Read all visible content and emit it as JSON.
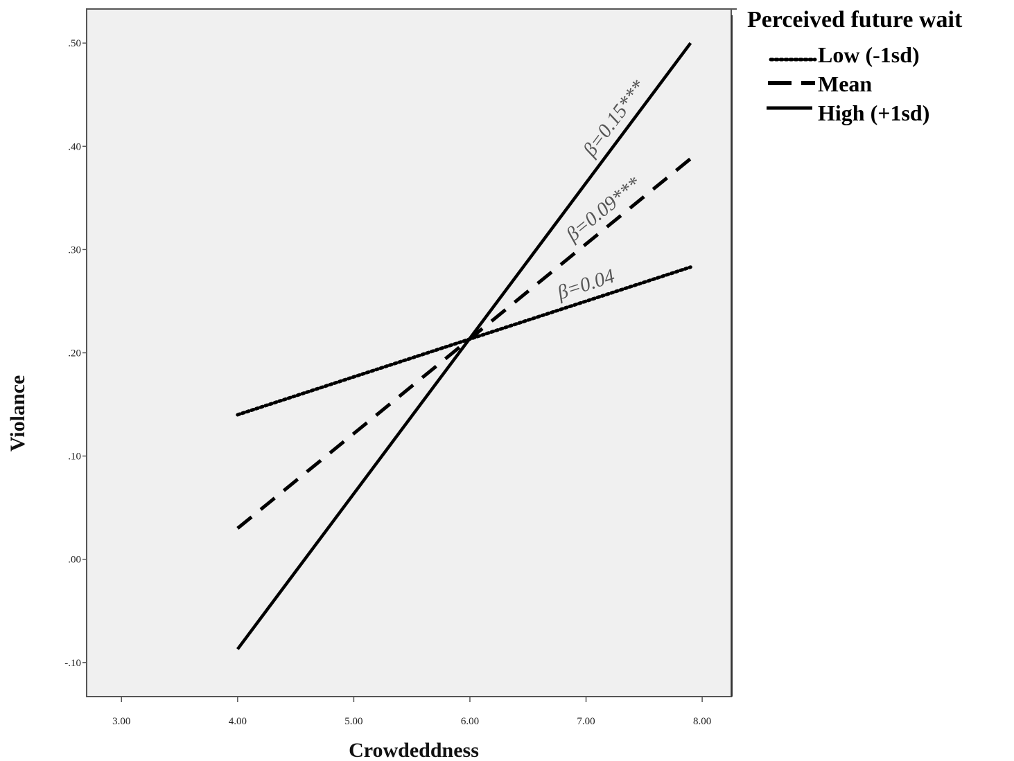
{
  "chart_data": {
    "type": "line",
    "xlabel": "Crowdeddness",
    "ylabel": "Violance",
    "xlim": [
      2.7,
      8.25
    ],
    "ylim": [
      -0.133,
      0.533
    ],
    "x_ticks": [
      3,
      4,
      5,
      6,
      7,
      8
    ],
    "x_tick_labels": [
      "3.00",
      "4.00",
      "5.00",
      "6.00",
      "7.00",
      "8.00"
    ],
    "y_ticks": [
      -0.1,
      0.0,
      0.1,
      0.2,
      0.3,
      0.4,
      0.5
    ],
    "y_tick_labels": [
      "-.10",
      ".00",
      ".10",
      ".20",
      ".30",
      ".40",
      ".50"
    ],
    "plot_background": "#f0f0f0",
    "legend": {
      "title": "Perceived future wait",
      "placement": "outside-top-right"
    },
    "series": [
      {
        "name": "Low (-1sd)",
        "style": "dotted",
        "x": [
          4.0,
          7.9
        ],
        "y": [
          0.14,
          0.283
        ],
        "annotation": "β=0.04"
      },
      {
        "name": "Mean",
        "style": "dashed",
        "x": [
          4.0,
          7.9
        ],
        "y": [
          0.03,
          0.388
        ],
        "annotation": "β=0.09***"
      },
      {
        "name": "High (+1sd)",
        "style": "solid",
        "x": [
          4.0,
          7.9
        ],
        "y": [
          -0.087,
          0.5
        ],
        "annotation": "β=0.15***"
      }
    ]
  }
}
